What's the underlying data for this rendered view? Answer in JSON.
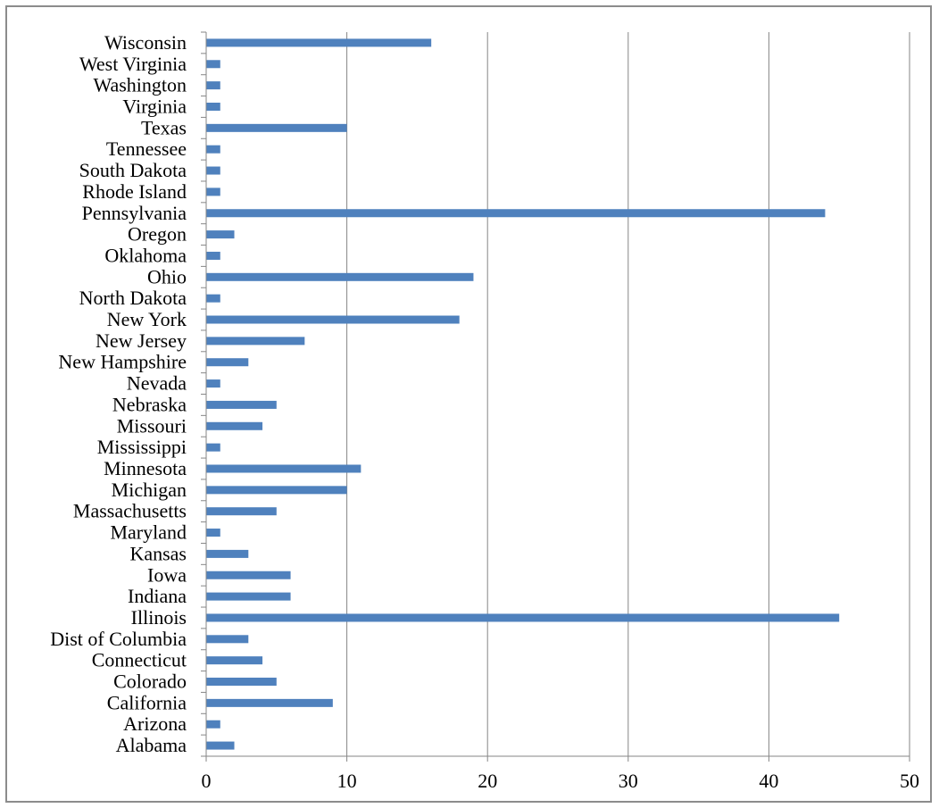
{
  "chart_data": {
    "type": "bar",
    "orientation": "horizontal",
    "categories": [
      "Alabama",
      "Arizona",
      "California",
      "Colorado",
      "Connecticut",
      "Dist of Columbia",
      "Illinois",
      "Indiana",
      "Iowa",
      "Kansas",
      "Maryland",
      "Massachusetts",
      "Michigan",
      "Minnesota",
      "Mississippi",
      "Missouri",
      "Nebraska",
      "Nevada",
      "New Hampshire",
      "New Jersey",
      "New York",
      "North Dakota",
      "Ohio",
      "Oklahoma",
      "Oregon",
      "Pennsylvania",
      "Rhode Island",
      "South Dakota",
      "Tennessee",
      "Texas",
      "Virginia",
      "Washington",
      "West Virginia",
      "Wisconsin"
    ],
    "values": [
      2,
      1,
      9,
      5,
      4,
      3,
      45,
      6,
      6,
      3,
      1,
      5,
      10,
      11,
      1,
      4,
      5,
      1,
      3,
      7,
      18,
      1,
      19,
      1,
      2,
      44,
      1,
      1,
      1,
      10,
      1,
      1,
      1,
      16
    ],
    "xlim": [
      0,
      50
    ],
    "xticks": [
      0,
      10,
      20,
      30,
      40,
      50
    ],
    "grid": "vertical",
    "legend": "none",
    "bar_color": "#4f81bd",
    "grid_color": "#868686",
    "axis_color": "#868686"
  }
}
